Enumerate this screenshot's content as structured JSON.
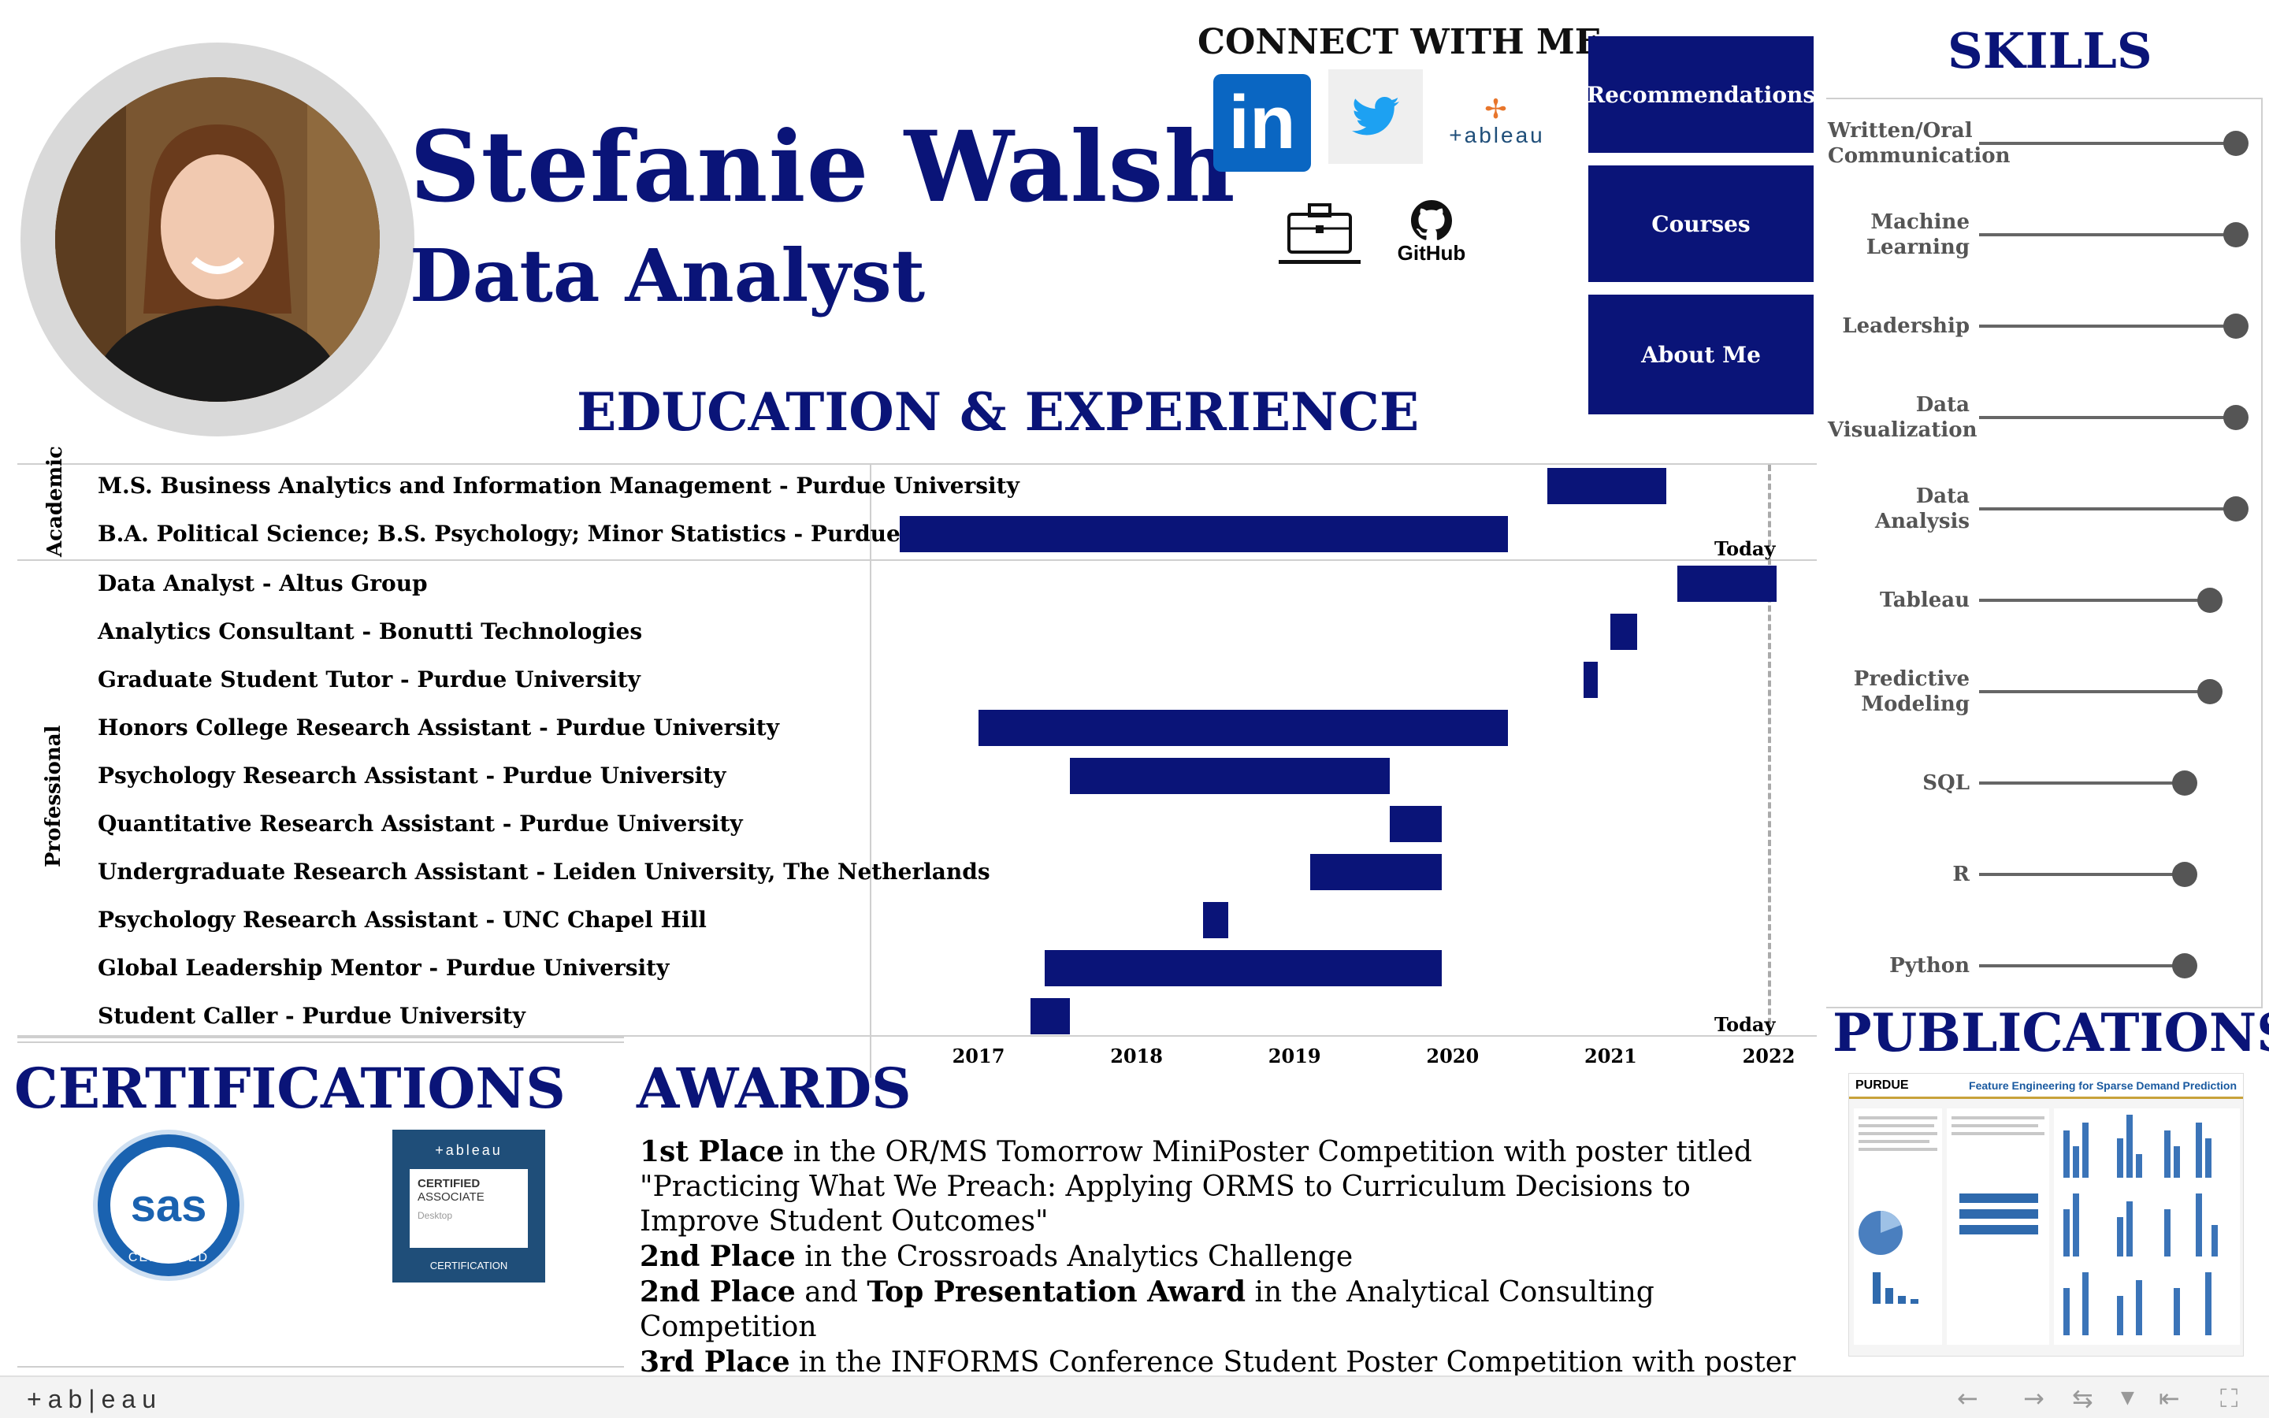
{
  "profile": {
    "name": "Stefanie Walsh",
    "title": "Data Analyst"
  },
  "connect": {
    "heading": "CONNECT WITH ME",
    "linkedin": "in",
    "tableau": "+ableau",
    "github": "GitHub"
  },
  "nav": {
    "recommendations": "Recommendations",
    "courses": "Courses",
    "about": "About Me"
  },
  "education_experience": {
    "heading": "EDUCATION & EXPERIENCE",
    "academic_label": "Academic",
    "professional_label": "Professional",
    "today_label": "Today",
    "years": [
      "2017",
      "2018",
      "2019",
      "2020",
      "2021",
      "2022"
    ],
    "academic": [
      {
        "label": "M.S. Business Analytics and Information Management - Purdue University",
        "start": 2020.6,
        "end": 2021.35
      },
      {
        "label": "B.A. Political Science; B.S. Psychology; Minor Statistics - Purdue University",
        "start": 2016.5,
        "end": 2020.35
      }
    ],
    "professional": [
      {
        "label": "Data Analyst - Altus Group",
        "start": 2021.42,
        "end": 2022.05
      },
      {
        "label": "Analytics Consultant - Bonutti Technologies",
        "start": 2021.0,
        "end": 2021.17
      },
      {
        "label": "Graduate Student Tutor - Purdue University",
        "start": 2020.83,
        "end": 2020.92
      },
      {
        "label": "Honors College Research Assistant - Purdue University",
        "start": 2017.0,
        "end": 2020.35
      },
      {
        "label": "Psychology Research Assistant - Purdue University",
        "start": 2017.58,
        "end": 2019.6
      },
      {
        "label": "Quantitative Research Assistant - Purdue University",
        "start": 2019.6,
        "end": 2019.93
      },
      {
        "label": "Undergraduate Research Assistant - Leiden University, The Netherlands",
        "start": 2019.1,
        "end": 2019.93
      },
      {
        "label": "Psychology Research Assistant - UNC Chapel Hill",
        "start": 2018.42,
        "end": 2018.58
      },
      {
        "label": "Global Leadership Mentor - Purdue University",
        "start": 2017.42,
        "end": 2019.93
      },
      {
        "label": "Student Caller - Purdue University",
        "start": 2017.33,
        "end": 2017.58
      }
    ]
  },
  "skills": {
    "heading": "SKILLS",
    "items": [
      {
        "label": "Written/Oral Communication",
        "level": 5
      },
      {
        "label": "Machine Learning",
        "level": 5
      },
      {
        "label": "Leadership",
        "level": 5
      },
      {
        "label": "Data Visualization",
        "level": 5
      },
      {
        "label": "Data Analysis",
        "level": 5
      },
      {
        "label": "Tableau",
        "level": 4.5
      },
      {
        "label": "Predictive Modeling",
        "level": 4.5
      },
      {
        "label": "SQL",
        "level": 4
      },
      {
        "label": "R",
        "level": 4
      },
      {
        "label": "Python",
        "level": 4
      }
    ]
  },
  "certifications": {
    "heading": "CERTIFICATIONS",
    "sas": "sas",
    "sas_sub": "CERTIFIED",
    "tableau_brand": "+ableau",
    "tableau_line1": "CERTIFIED",
    "tableau_line2": "ASSOCIATE",
    "tableau_line3": "Desktop",
    "tableau_line4": "CERTIFICATION"
  },
  "awards": {
    "heading": "AWARDS",
    "a1_bold": "1st Place",
    "a1_text": " in the OR/MS Tomorrow MiniPoster Competition with poster titled \"Practicing What We Preach: Applying ORMS to Curriculum Decisions to Improve Student Outcomes\"",
    "a2_bold": "2nd Place",
    "a2_text": " in the Crossroads Analytics Challenge",
    "a3_bold": "2nd Place",
    "a3_mid": " and ",
    "a3_bold2": "Top Presentation Award",
    "a3_text": " in the Analytical Consulting Competition",
    "a4_bold": "3rd Place",
    "a4_text": " in the INFORMS Conference Student Poster Competition with poster titled \"Feature Engineering for Sparse Demand Prediction\""
  },
  "publications": {
    "heading": "PUBLICATIONS",
    "poster_org": "PURDUE",
    "poster_title": "Feature Engineering for Sparse Demand Prediction"
  },
  "footer": {
    "brand": "+ab|eau"
  }
}
